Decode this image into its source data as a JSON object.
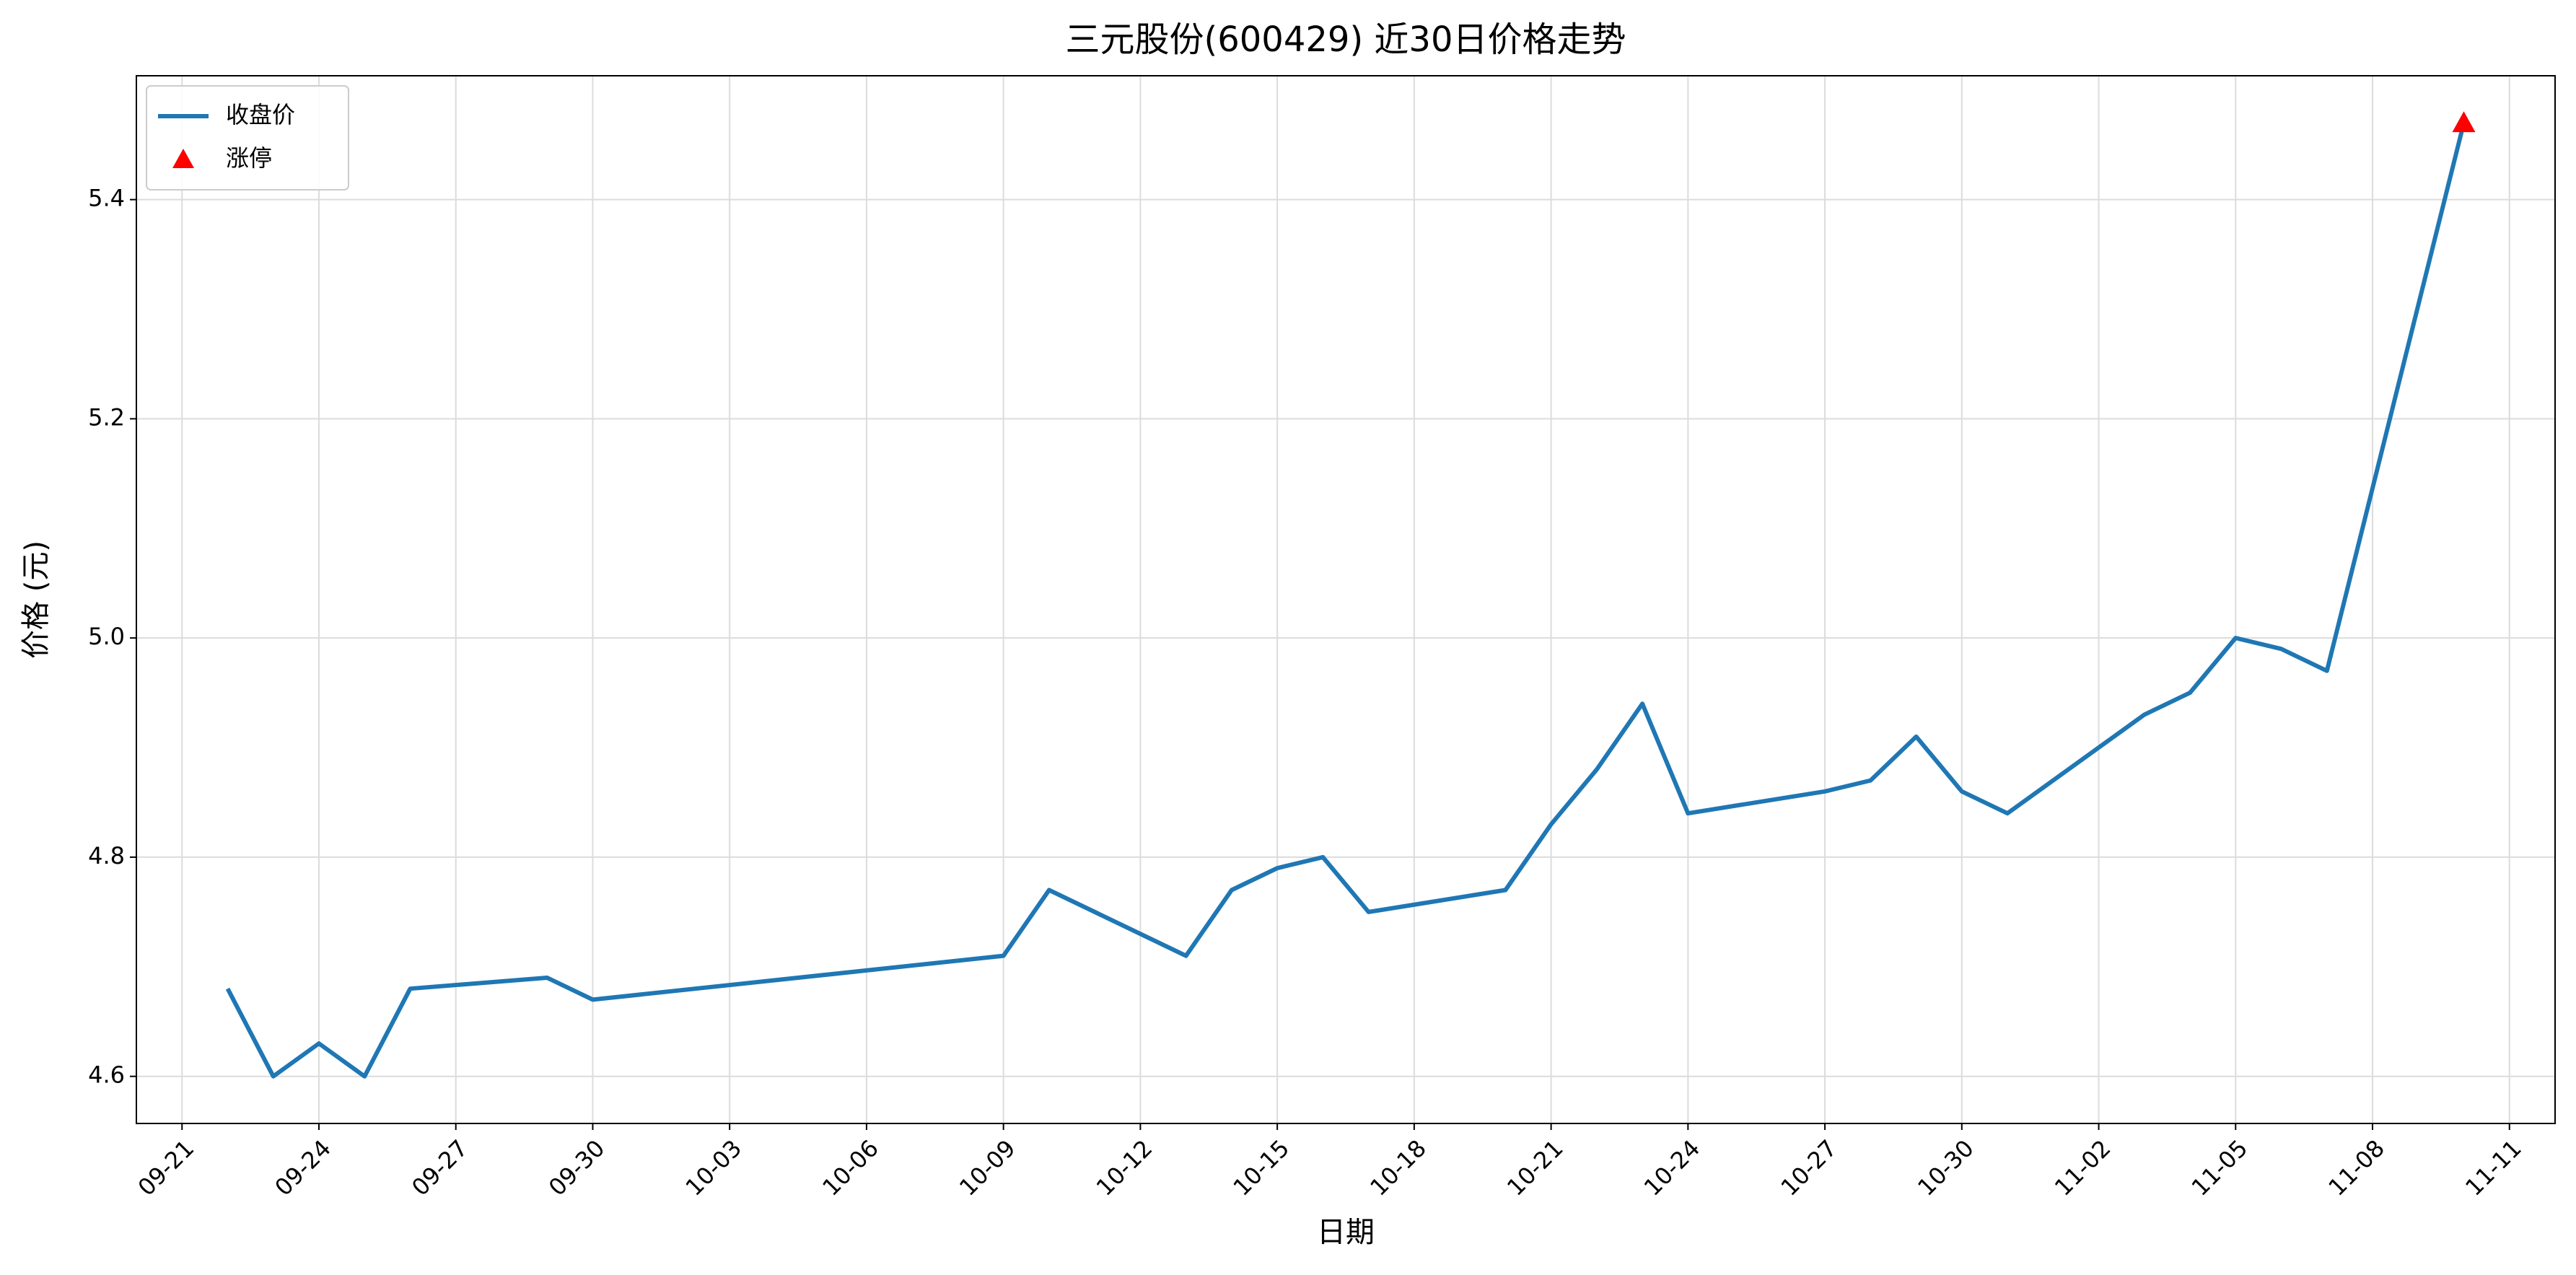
{
  "chart_data": {
    "type": "line",
    "title": "三元股份(600429) 近30日价格走势",
    "xlabel": "日期",
    "ylabel": "价格 (元)",
    "x": [
      "09-22",
      "09-23",
      "09-24",
      "09-25",
      "09-26",
      "09-29",
      "09-30",
      "10-09",
      "10-10",
      "10-13",
      "10-14",
      "10-15",
      "10-16",
      "10-17",
      "10-20",
      "10-21",
      "10-22",
      "10-23",
      "10-24",
      "10-27",
      "10-28",
      "10-29",
      "10-30",
      "10-31",
      "11-03",
      "11-04",
      "11-05",
      "11-06",
      "11-07",
      "11-10"
    ],
    "series": [
      {
        "name": "收盘价",
        "type": "line",
        "color": "#1f77b4",
        "values": [
          4.68,
          4.6,
          4.63,
          4.6,
          4.68,
          4.69,
          4.67,
          4.71,
          4.77,
          4.71,
          4.77,
          4.79,
          4.8,
          4.75,
          4.77,
          4.83,
          4.88,
          4.94,
          4.84,
          4.86,
          4.87,
          4.91,
          4.86,
          4.84,
          4.93,
          4.95,
          5.0,
          4.99,
          4.97,
          5.47
        ]
      },
      {
        "name": "涨停",
        "type": "scatter",
        "marker": "triangle",
        "color": "#ff0000",
        "x": [
          "11-10"
        ],
        "values": [
          5.47
        ]
      }
    ],
    "xlim": [
      "09-20",
      "11-12"
    ],
    "xticks": [
      "09-21",
      "09-24",
      "09-27",
      "09-30",
      "10-03",
      "10-06",
      "10-09",
      "10-12",
      "10-15",
      "10-18",
      "10-21",
      "10-24",
      "10-27",
      "10-30",
      "11-02",
      "11-05",
      "11-08",
      "11-11"
    ],
    "ylim": [
      4.557,
      5.513
    ],
    "yticks": [
      4.6,
      4.8,
      {
        "value": 5,
        "label": "5.0"
      },
      5.2,
      5.4
    ],
    "grid": true,
    "legend": "upper left"
  }
}
